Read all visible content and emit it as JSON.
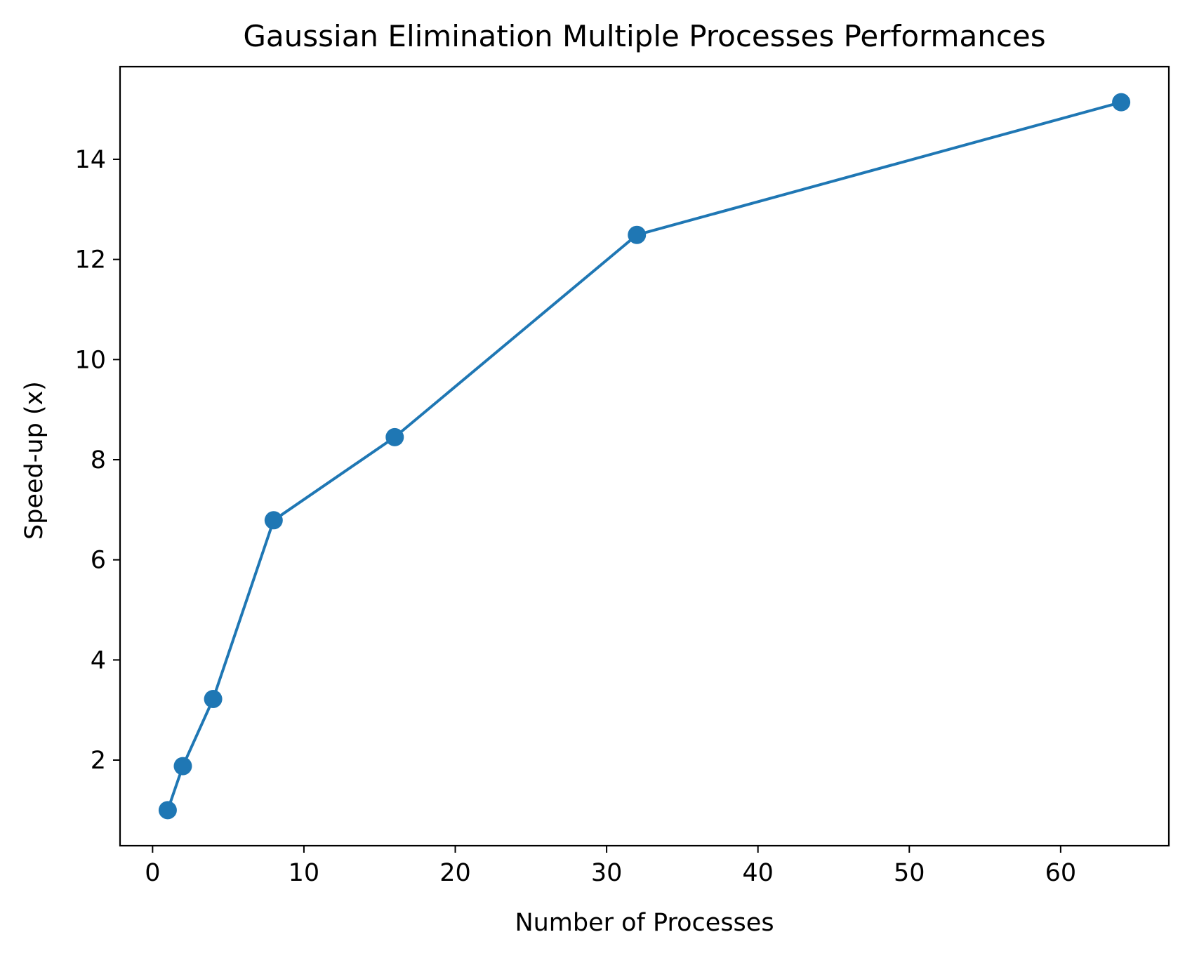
{
  "chart_data": {
    "type": "line",
    "title": "Gaussian Elimination Multiple Processes Performances",
    "xlabel": "Number of Processes",
    "ylabel": "Speed-up (x)",
    "xlim": [
      -2.15,
      67.15
    ],
    "ylim": [
      0.29,
      15.85
    ],
    "xticks": [
      0,
      10,
      20,
      30,
      40,
      50,
      60
    ],
    "yticks": [
      2,
      4,
      6,
      8,
      10,
      12,
      14
    ],
    "grid": false,
    "legend": "none",
    "series": [
      {
        "color": "#1f77b4",
        "marker": "circle",
        "x": [
          1,
          2,
          4,
          8,
          16,
          32,
          64
        ],
        "y": [
          1.0,
          1.88,
          3.22,
          6.79,
          8.45,
          12.49,
          15.14
        ]
      }
    ]
  }
}
